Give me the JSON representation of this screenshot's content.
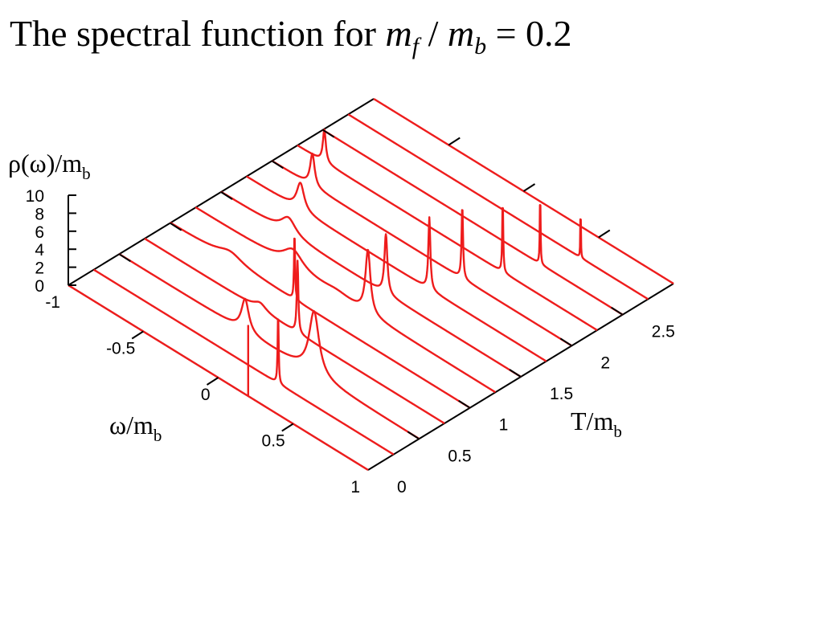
{
  "title": {
    "prefix": "The spectral function for ",
    "m1": "m",
    "sub1": "f",
    "sep": " / ",
    "m2": "m",
    "sub2": "b",
    "suffix": " = 0.2"
  },
  "chart_data": {
    "type": "line",
    "subtype": "3d-waterfall",
    "title": "The spectral function for m_f / m_b = 0.2",
    "axes": {
      "x": {
        "label": "ω/m",
        "label_sub": "b",
        "range": [
          -1,
          1
        ],
        "ticks": [
          -1,
          -0.5,
          0,
          0.5,
          1
        ],
        "tick_labels": [
          "-1",
          "-0.5",
          "0",
          "0.5",
          "1"
        ]
      },
      "y": {
        "label": "T/m",
        "label_sub": "b",
        "range": [
          0,
          3
        ],
        "ticks": [
          0,
          0.5,
          1,
          1.5,
          2,
          2.5
        ],
        "tick_labels": [
          "0",
          "0.5",
          "1",
          "1.5",
          "2",
          "2.5"
        ]
      },
      "z": {
        "label": "ρ(ω)/m",
        "label_sub": "b",
        "range": [
          0,
          10
        ],
        "ticks": [
          0,
          2,
          4,
          6,
          8,
          10
        ],
        "tick_labels": [
          "0",
          "2",
          "4",
          "6",
          "8",
          "10"
        ]
      }
    },
    "series_color": "#ee1c1c",
    "series": [
      {
        "T": 0.0,
        "peaks": [
          {
            "omega": 0.2,
            "height": 7.9,
            "width": 0.0
          }
        ]
      },
      {
        "T": 0.25,
        "peaks": [
          {
            "omega": 0.23,
            "height": 8.0,
            "width": 0.004
          }
        ]
      },
      {
        "T": 0.5,
        "peaks": [
          {
            "omega": 0.3,
            "height": 7.0,
            "width": 0.04
          },
          {
            "omega": -0.16,
            "height": 3.6,
            "width": 0.03
          }
        ]
      },
      {
        "T": 0.75,
        "peaks": [
          {
            "omega": 0.02,
            "height": 8.0,
            "width": 0.006
          },
          {
            "omega": -0.23,
            "height": 0.8,
            "width": 0.05
          }
        ]
      },
      {
        "T": 1.0,
        "peaks": [
          {
            "omega": -0.17,
            "height": 7.6,
            "width": 0.004
          },
          {
            "omega": -0.6,
            "height": 1.0,
            "width": 0.1
          }
        ]
      },
      {
        "T": 1.25,
        "peaks": [
          {
            "omega": -0.35,
            "height": 2.0,
            "width": 0.08
          },
          {
            "omega": -0.06,
            "height": 0.4,
            "width": 0.1
          },
          {
            "omega": 0.15,
            "height": 7.0,
            "width": 0.02
          }
        ]
      },
      {
        "T": 1.5,
        "peaks": [
          {
            "omega": -0.55,
            "height": 1.8,
            "width": 0.06
          },
          {
            "omega": 0.1,
            "height": 6.6,
            "width": 0.012
          }
        ]
      },
      {
        "T": 1.75,
        "peaks": [
          {
            "omega": -0.64,
            "height": 3.0,
            "width": 0.03
          },
          {
            "omega": 0.22,
            "height": 8.0,
            "width": 0.008
          }
        ]
      },
      {
        "T": 2.0,
        "peaks": [
          {
            "omega": -0.73,
            "height": 3.6,
            "width": 0.018
          },
          {
            "omega": 0.27,
            "height": 8.0,
            "width": 0.006
          }
        ]
      },
      {
        "T": 2.25,
        "peaks": [
          {
            "omega": -0.82,
            "height": 3.6,
            "width": 0.012
          },
          {
            "omega": 0.37,
            "height": 8.0,
            "width": 0.004
          }
        ]
      },
      {
        "T": 2.5,
        "peaks": [
          {
            "omega": 0.45,
            "height": 8.0,
            "width": 0.003
          }
        ]
      },
      {
        "T": 2.75,
        "peaks": [
          {
            "omega": 0.55,
            "height": 6.4,
            "width": 0.002
          }
        ]
      },
      {
        "T": 3.0,
        "peaks": []
      }
    ]
  }
}
